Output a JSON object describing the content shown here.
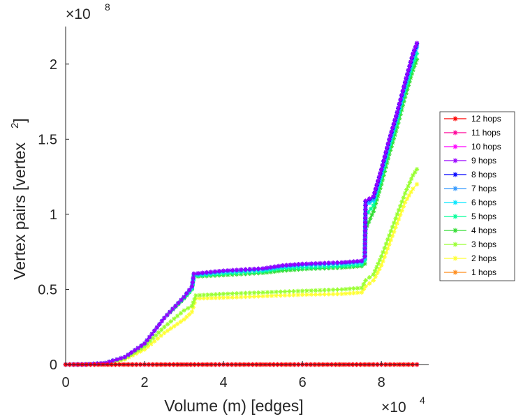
{
  "chart_data": {
    "type": "line",
    "title": "",
    "xlabel": "Volume (m) [edges]",
    "ylabel_main": "Vertex pairs [vertex",
    "ylabel_sup": "2",
    "ylabel_close": "]",
    "x_multiplier": {
      "base": "×10",
      "exp": "4"
    },
    "y_multiplier": {
      "base": "×10",
      "exp": "8"
    },
    "xlim": [
      0,
      9.2
    ],
    "ylim": [
      0,
      2.25
    ],
    "xticks": [
      0,
      2,
      4,
      6,
      8
    ],
    "xtick_labels": [
      "0",
      "2",
      "4",
      "6",
      "8"
    ],
    "yticks": [
      0,
      0.5,
      1,
      1.5,
      2
    ],
    "ytick_labels": [
      "0",
      "0.5",
      "1",
      "1.5",
      "2"
    ],
    "legend_position": "right",
    "marker": "asterisk",
    "series": [
      {
        "name": "12 hops",
        "color": "#ff0000",
        "x": [
          0,
          2,
          4,
          6,
          8,
          8.9
        ],
        "y": [
          0,
          0,
          0,
          0,
          0,
          0
        ]
      },
      {
        "name": "11 hops",
        "color": "#ff0099",
        "x": [
          0,
          2,
          4,
          6,
          8,
          8.9
        ],
        "y": [
          0,
          0,
          0,
          0,
          0,
          0
        ]
      },
      {
        "name": "10 hops",
        "color": "#ff00ff",
        "x": [
          0,
          2,
          4,
          6,
          8,
          8.9
        ],
        "y": [
          0,
          0,
          0,
          0,
          0,
          0
        ]
      },
      {
        "name": "9 hops",
        "color": "#9900ff",
        "x": [
          0,
          0.5,
          1,
          1.5,
          2,
          2.5,
          3,
          3.2,
          3.25,
          4,
          5,
          5.5,
          6,
          7,
          7.5,
          7.58,
          7.6,
          7.8,
          8,
          8.2,
          8.4,
          8.6,
          8.8,
          8.9
        ],
        "y": [
          0,
          0.001,
          0.01,
          0.05,
          0.14,
          0.31,
          0.45,
          0.52,
          0.605,
          0.625,
          0.64,
          0.66,
          0.67,
          0.68,
          0.69,
          0.72,
          1.09,
          1.12,
          1.3,
          1.5,
          1.68,
          1.88,
          2.07,
          2.14
        ]
      },
      {
        "name": "8 hops",
        "color": "#0000ff",
        "x": [
          0,
          0.5,
          1,
          1.5,
          2,
          2.5,
          3,
          3.2,
          3.25,
          4,
          5,
          5.5,
          6,
          7,
          7.5,
          7.58,
          7.6,
          7.8,
          8,
          8.2,
          8.4,
          8.6,
          8.8,
          8.9
        ],
        "y": [
          0,
          0.001,
          0.01,
          0.05,
          0.14,
          0.31,
          0.45,
          0.52,
          0.604,
          0.624,
          0.639,
          0.659,
          0.669,
          0.679,
          0.689,
          0.719,
          1.085,
          1.115,
          1.295,
          1.495,
          1.675,
          1.875,
          2.065,
          2.135
        ]
      },
      {
        "name": "7 hops",
        "color": "#3399ff",
        "x": [
          0,
          0.5,
          1,
          1.5,
          2,
          2.5,
          3,
          3.2,
          3.25,
          4,
          5,
          5.5,
          6,
          7,
          7.5,
          7.58,
          7.6,
          7.8,
          8,
          8.2,
          8.4,
          8.6,
          8.8,
          8.9
        ],
        "y": [
          0,
          0.001,
          0.01,
          0.05,
          0.14,
          0.31,
          0.45,
          0.515,
          0.6,
          0.62,
          0.635,
          0.655,
          0.665,
          0.675,
          0.685,
          0.71,
          1.07,
          1.1,
          1.28,
          1.48,
          1.66,
          1.86,
          2.05,
          2.12
        ]
      },
      {
        "name": "6 hops",
        "color": "#00e6ff",
        "x": [
          0,
          0.5,
          1,
          1.5,
          2,
          2.5,
          3,
          3.2,
          3.25,
          4,
          5,
          5.5,
          6,
          7,
          7.5,
          7.58,
          7.6,
          7.8,
          8,
          8.2,
          8.4,
          8.6,
          8.8,
          8.9
        ],
        "y": [
          0,
          0.001,
          0.01,
          0.05,
          0.14,
          0.31,
          0.45,
          0.51,
          0.595,
          0.615,
          0.63,
          0.65,
          0.66,
          0.67,
          0.68,
          0.705,
          1.06,
          1.09,
          1.27,
          1.47,
          1.65,
          1.85,
          2.04,
          2.11
        ]
      },
      {
        "name": "5 hops",
        "color": "#00ff99",
        "x": [
          0,
          0.5,
          1,
          1.5,
          2,
          2.5,
          3,
          3.2,
          3.25,
          4,
          5,
          5.5,
          6,
          7,
          7.5,
          7.58,
          7.6,
          7.8,
          8,
          8.2,
          8.4,
          8.6,
          8.8,
          8.9
        ],
        "y": [
          0,
          0.001,
          0.01,
          0.05,
          0.14,
          0.31,
          0.445,
          0.505,
          0.59,
          0.605,
          0.62,
          0.64,
          0.645,
          0.655,
          0.665,
          0.69,
          0.99,
          1.06,
          1.24,
          1.44,
          1.62,
          1.82,
          2.0,
          2.07
        ]
      },
      {
        "name": "4 hops",
        "color": "#33dd33",
        "x": [
          0,
          0.5,
          1,
          1.5,
          2,
          2.5,
          3,
          3.2,
          3.25,
          4,
          5,
          5.5,
          6,
          7,
          7.5,
          7.58,
          7.6,
          7.8,
          8,
          8.2,
          8.4,
          8.6,
          8.8,
          8.9
        ],
        "y": [
          0,
          0.001,
          0.01,
          0.05,
          0.14,
          0.31,
          0.44,
          0.5,
          0.585,
          0.595,
          0.61,
          0.625,
          0.635,
          0.645,
          0.655,
          0.67,
          0.9,
          1.02,
          1.2,
          1.4,
          1.58,
          1.78,
          1.96,
          2.03
        ]
      },
      {
        "name": "3 hops",
        "color": "#99ff33",
        "x": [
          0,
          0.5,
          1,
          1.5,
          2,
          2.5,
          3,
          3.2,
          3.3,
          4,
          5,
          6,
          7,
          7.5,
          7.6,
          7.8,
          8,
          8.2,
          8.4,
          8.6,
          8.8,
          8.9
        ],
        "y": [
          0,
          0.001,
          0.008,
          0.04,
          0.12,
          0.25,
          0.36,
          0.39,
          0.46,
          0.47,
          0.48,
          0.49,
          0.5,
          0.51,
          0.56,
          0.6,
          0.72,
          0.86,
          1.0,
          1.14,
          1.26,
          1.3
        ]
      },
      {
        "name": "2 hops",
        "color": "#ffff33",
        "x": [
          0,
          0.5,
          1,
          1.5,
          2,
          2.5,
          3,
          3.2,
          3.3,
          4,
          5,
          6,
          7,
          7.5,
          7.6,
          7.8,
          8,
          8.2,
          8.4,
          8.6,
          8.8,
          8.9
        ],
        "y": [
          0,
          0.001,
          0.006,
          0.035,
          0.1,
          0.21,
          0.3,
          0.35,
          0.44,
          0.445,
          0.455,
          0.465,
          0.47,
          0.48,
          0.52,
          0.56,
          0.66,
          0.8,
          0.94,
          1.08,
          1.17,
          1.2
        ]
      },
      {
        "name": "1 hops",
        "color": "#ff8c1a",
        "x": [
          0,
          0.5,
          1,
          1.5,
          2,
          2.5,
          3,
          3.5,
          4,
          4.5,
          5,
          5.5,
          6,
          6.5,
          7,
          7.5,
          8,
          8.5,
          8.9
        ],
        "y": [
          0,
          0,
          0,
          0,
          0,
          0,
          0,
          0,
          0,
          0,
          0,
          0,
          0,
          0,
          0,
          0,
          0,
          0,
          0
        ]
      }
    ]
  }
}
